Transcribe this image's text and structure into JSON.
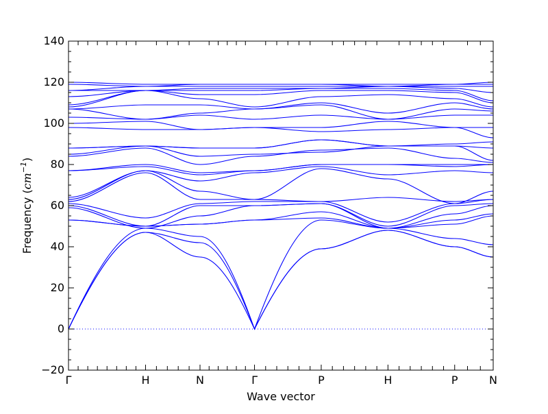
{
  "chart_data": {
    "type": "line",
    "title": "",
    "xlabel": "Wave vector",
    "ylabel": "Frequency",
    "ylabel_unit_base": "cm",
    "ylabel_unit_exp": "−1",
    "ylim": [
      -20,
      140
    ],
    "yticks": [
      -20,
      0,
      20,
      40,
      60,
      80,
      100,
      120,
      140
    ],
    "ytick_labels": [
      "−20",
      "0",
      "20",
      "40",
      "60",
      "80",
      "100",
      "120",
      "140"
    ],
    "x_positions": [
      0,
      1,
      1.7071,
      2.4142,
      3.2802,
      4.1463,
      5.0123,
      5.5123
    ],
    "x_labels": [
      "Γ",
      "H",
      "N",
      "Γ",
      "P",
      "H",
      "P",
      "N"
    ],
    "xlim": [
      0,
      5.5123
    ],
    "grid": false,
    "line_color": "#0000ff",
    "zero_line_color": "#0000ff",
    "bands": [
      [
        0,
        47,
        42,
        0,
        39,
        48,
        40,
        35
      ],
      [
        0,
        47,
        35,
        0,
        39,
        48,
        40,
        35
      ],
      [
        0,
        49,
        45,
        0,
        53,
        49,
        44,
        41
      ],
      [
        53,
        50,
        51,
        53,
        54,
        49,
        51,
        55
      ],
      [
        53,
        50,
        51,
        53,
        57,
        49,
        53,
        56
      ],
      [
        59,
        49,
        55,
        60,
        61,
        49,
        56,
        60
      ],
      [
        60,
        50,
        60,
        60,
        61,
        50,
        60,
        61
      ],
      [
        61,
        54,
        61,
        62,
        62,
        52,
        61,
        63
      ],
      [
        62,
        76,
        63,
        63,
        62,
        64,
        62,
        63
      ],
      [
        63,
        77,
        67,
        63,
        78,
        73,
        61,
        67
      ],
      [
        64,
        77,
        72,
        76,
        79,
        75,
        77,
        76
      ],
      [
        77,
        79,
        75,
        77,
        80,
        80,
        79,
        80
      ],
      [
        77,
        80,
        76,
        77,
        80,
        80,
        80,
        80
      ],
      [
        84,
        88,
        80,
        84,
        87,
        88,
        83,
        81
      ],
      [
        85,
        89,
        84,
        85,
        86,
        89,
        89,
        82
      ],
      [
        88,
        89,
        88,
        88,
        92,
        89,
        89,
        88
      ],
      [
        88,
        89,
        88,
        88,
        92,
        89,
        90,
        91
      ],
      [
        98,
        97,
        97,
        98,
        96,
        97,
        98,
        93
      ],
      [
        100,
        101,
        97,
        98,
        98,
        101,
        98,
        98
      ],
      [
        103,
        102,
        104,
        102,
        104,
        102,
        104,
        104
      ],
      [
        107,
        102,
        105,
        107,
        109,
        102,
        107,
        106
      ],
      [
        107,
        109,
        109,
        107,
        110,
        105,
        110,
        107
      ],
      [
        108,
        116,
        112,
        108,
        113,
        114,
        112,
        108
      ],
      [
        109,
        116,
        114,
        114,
        116,
        116,
        115,
        110
      ],
      [
        113,
        116,
        116,
        116,
        117,
        117,
        116,
        111
      ],
      [
        116,
        116,
        117,
        117,
        117,
        118,
        117,
        115
      ],
      [
        116,
        118,
        118,
        118,
        118,
        118,
        118,
        118
      ],
      [
        119,
        118,
        119,
        119,
        119,
        118,
        119,
        119
      ],
      [
        120,
        119,
        119,
        119,
        119,
        119,
        119,
        120
      ]
    ]
  }
}
